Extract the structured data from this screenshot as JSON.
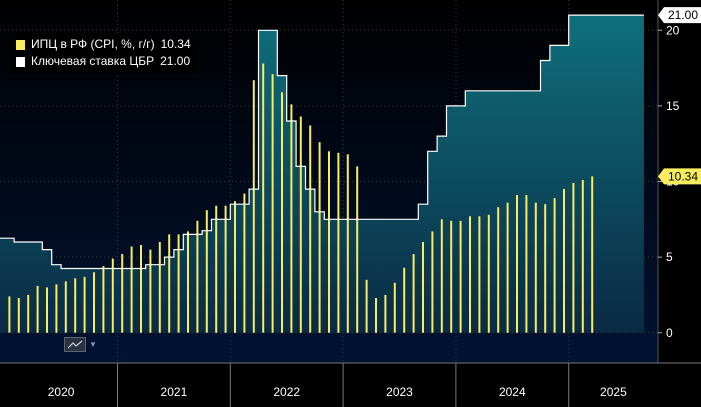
{
  "legend": {
    "cpi_label": "ИПЦ в РФ (CPI, %, г/г)",
    "cpi_value": "10.34",
    "rate_label": "Ключевая ставка ЦБР",
    "rate_value": "21.00"
  },
  "colors": {
    "cpi": "#f8ec61",
    "rate_line": "#ffffff",
    "area_top": "#0f6f7b",
    "area_bottom": "#0a2a44",
    "plot_bg_top": "#000000",
    "plot_bg_bottom": "#001333",
    "grid": "#3a3a3a",
    "axis_text": "#ffffff",
    "badge_rate": "#ffffff",
    "badge_cpi": "#f8ec61"
  },
  "chart_data": {
    "type": "bar+area",
    "title": "",
    "xlabel": "",
    "ylabel": "",
    "ylim": [
      -2,
      22
    ],
    "y_ticks": [
      0,
      5,
      10,
      15,
      20
    ],
    "x_labels": [
      "2020",
      "2021",
      "2022",
      "2023",
      "2024",
      "2025"
    ],
    "x_start_month": "2020-01",
    "x_end_month": "2025-09",
    "badges": {
      "rate": "21.00",
      "cpi": "10.34"
    },
    "series": [
      {
        "name": "ИПЦ в РФ (CPI, %, г/г)",
        "kind": "bar",
        "start_month": "2020-01",
        "values": [
          2.4,
          2.3,
          2.5,
          3.1,
          3.0,
          3.2,
          3.4,
          3.6,
          3.7,
          4.0,
          4.4,
          4.9,
          5.2,
          5.7,
          5.8,
          5.5,
          6.0,
          6.5,
          6.5,
          6.7,
          7.4,
          8.1,
          8.4,
          8.4,
          8.7,
          9.2,
          16.7,
          17.8,
          17.1,
          15.9,
          15.1,
          14.3,
          13.7,
          12.6,
          12.0,
          11.9,
          11.8,
          11.0,
          3.5,
          2.3,
          2.5,
          3.3,
          4.3,
          5.2,
          6.0,
          6.7,
          7.5,
          7.4,
          7.4,
          7.7,
          7.7,
          7.8,
          8.3,
          8.6,
          9.1,
          9.1,
          8.6,
          8.5,
          8.9,
          9.5,
          9.9,
          10.1,
          10.34
        ]
      },
      {
        "name": "Ключевая ставка ЦБР",
        "kind": "step-area",
        "start_month": "2019-12",
        "values": [
          6.25,
          6.25,
          6.0,
          6.0,
          6.0,
          5.5,
          4.5,
          4.25,
          4.25,
          4.25,
          4.25,
          4.25,
          4.25,
          4.25,
          4.25,
          4.25,
          4.5,
          4.5,
          5.0,
          5.5,
          6.5,
          6.5,
          6.75,
          7.5,
          7.5,
          8.5,
          8.5,
          9.5,
          20.0,
          20.0,
          17.0,
          14.0,
          11.0,
          9.5,
          8.0,
          7.5,
          7.5,
          7.5,
          7.5,
          7.5,
          7.5,
          7.5,
          7.5,
          7.5,
          7.5,
          8.5,
          12.0,
          13.0,
          15.0,
          15.0,
          16.0,
          16.0,
          16.0,
          16.0,
          16.0,
          16.0,
          16.0,
          16.0,
          18.0,
          19.0,
          19.0,
          21.0,
          21.0,
          21.0,
          21.0,
          21.0,
          21.0,
          21.0,
          21.0
        ]
      }
    ]
  }
}
